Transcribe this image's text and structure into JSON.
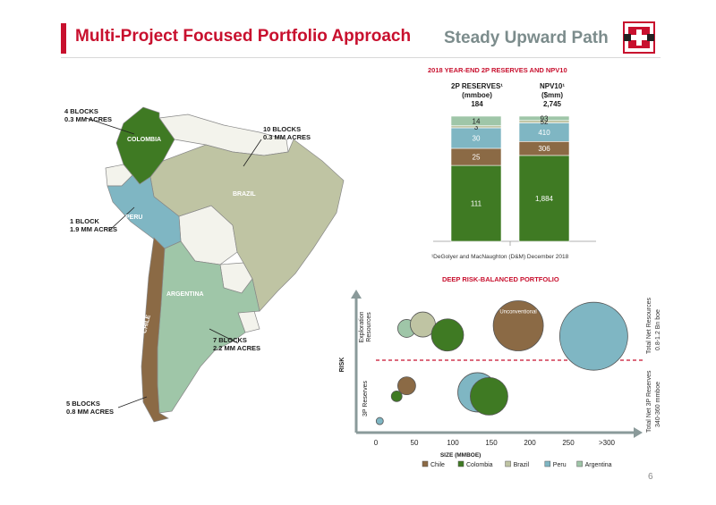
{
  "header": {
    "title": "Multi-Project Focused Portfolio Approach",
    "subtitle": "Steady Upward Path"
  },
  "colors": {
    "accent": "#c8102e",
    "chile": "#8b6a45",
    "colombia": "#3f7a23",
    "brazil": "#bfc4a3",
    "peru": "#7fb6c3",
    "argentina": "#9fc6a8",
    "other_land": "#f3f3ec"
  },
  "map": {
    "countries": {
      "colombia": "COLOMBIA",
      "peru": "PERU",
      "brazil": "BRAZIL",
      "argentina": "ARGENTINA",
      "chile": "CHILE"
    },
    "callouts": {
      "colombia": {
        "line1": "4 BLOCKS",
        "line2": "0.3 MM ACRES"
      },
      "brazil": {
        "line1": "10 BLOCKS",
        "line2": "0.3 MM ACRES"
      },
      "peru": {
        "line1": "1 BLOCK",
        "line2": "1.9 MM ACRES"
      },
      "argentina": {
        "line1": "7 BLOCKS",
        "line2": "2.2 MM ACRES"
      },
      "chile": {
        "line1": "5 BLOCKS",
        "line2": "0.8 MM ACRES"
      }
    }
  },
  "reserves_section": {
    "title": "2018 YEAR-END 2P RESERVES AND NPV10",
    "col1": {
      "line1": "2P RESERVES¹",
      "line2": "(mmboe)",
      "total": "184"
    },
    "col2": {
      "line1": "NPV10¹",
      "line2": "($mm)",
      "total": "2,745"
    },
    "footnote": "¹DeGolyer and MacNaughton (D&M) December 2018"
  },
  "portfolio_section": {
    "title": "DEEP RISK-BALANCED PORTFOLIO",
    "left_top": {
      "line1": "Exploration",
      "line2": "Resources"
    },
    "left_bottom": "3P Reserves",
    "right_top": {
      "line1": "Total Net Resources",
      "line2": "0.8-1.2 Bn boe"
    },
    "right_bottom": {
      "line1": "Total Net 3P Reserves",
      "line2": "340-360 mmboe"
    }
  },
  "chart_data": [
    {
      "type": "bar",
      "stacked": true,
      "categories": [
        "2P RESERVES (mmboe)",
        "NPV10 ($mm)"
      ],
      "series": [
        {
          "name": "Colombia",
          "values": [
            111,
            1884
          ],
          "color": "#3f7a23"
        },
        {
          "name": "Chile",
          "values": [
            25,
            306
          ],
          "color": "#8b6a45"
        },
        {
          "name": "Peru",
          "values": [
            30,
            410
          ],
          "color": "#7fb6c3"
        },
        {
          "name": "Brazil",
          "values": [
            3,
            52
          ],
          "color": "#bfc4a3"
        },
        {
          "name": "Argentina",
          "values": [
            14,
            93
          ],
          "color": "#9fc6a8"
        }
      ],
      "value_labels": [
        [
          "111",
          "25",
          "30",
          "3",
          "14"
        ],
        [
          "1,884",
          "306",
          "410",
          "52",
          "93"
        ]
      ],
      "totals": [
        "184",
        "2,745"
      ]
    },
    {
      "type": "scatter",
      "title": "DEEP RISK-BALANCED PORTFOLIO",
      "xlabel": "SIZE (MMBOE)",
      "ylabel": "RISK",
      "x_ticks": [
        "0",
        "50",
        "100",
        "150",
        "200",
        "250",
        ">300"
      ],
      "xlim": [
        0,
        300
      ],
      "ylim": [
        0,
        10
      ],
      "points": [
        {
          "group": "Exploration",
          "country": "Argentina",
          "x": 40,
          "y": 7.3,
          "size": 10
        },
        {
          "group": "Exploration",
          "country": "Brazil",
          "x": 61,
          "y": 7.6,
          "size": 14
        },
        {
          "group": "Exploration",
          "country": "Colombia",
          "x": 93,
          "y": 6.8,
          "size": 18
        },
        {
          "group": "Exploration",
          "country": "Chile",
          "x": 185,
          "y": 7.5,
          "size": 28,
          "label": "Unconventional"
        },
        {
          "group": "Exploration",
          "country": "Peru",
          "x": 283,
          "y": 6.7,
          "size": 38
        },
        {
          "group": "3P",
          "country": "Chile",
          "x": 40,
          "y": 2.9,
          "size": 10
        },
        {
          "group": "3P",
          "country": "Colombia",
          "x": 27,
          "y": 2.1,
          "size": 6
        },
        {
          "group": "3P",
          "country": "Peru",
          "x": 132,
          "y": 2.4,
          "size": 22
        },
        {
          "group": "3P",
          "country": "Colombia",
          "x": 147,
          "y": 2.1,
          "size": 21
        },
        {
          "group": "3P",
          "country": "Peru",
          "x": 5,
          "y": 0.2,
          "size": 4
        }
      ],
      "legend": [
        "Chile",
        "Colombia",
        "Brazil",
        "Peru",
        "Argentina"
      ],
      "legend_position": "bottom"
    }
  ],
  "page_number": "6"
}
